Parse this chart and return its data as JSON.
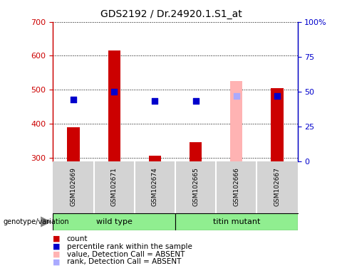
{
  "title": "GDS2192 / Dr.24920.1.S1_at",
  "samples": [
    "GSM102669",
    "GSM102671",
    "GSM102674",
    "GSM102665",
    "GSM102666",
    "GSM102667"
  ],
  "count_values": [
    390,
    615,
    305,
    345,
    525,
    505
  ],
  "percentile_values": [
    44,
    50,
    43,
    43,
    47,
    47
  ],
  "absent_flags": [
    false,
    false,
    false,
    false,
    true,
    false
  ],
  "bar_color_present": "#cc0000",
  "bar_color_absent": "#ffb3b3",
  "dot_color_present": "#0000cc",
  "dot_color_absent": "#aaaaff",
  "ylim_left": [
    290,
    700
  ],
  "ylim_right": [
    0,
    100
  ],
  "yticks_left": [
    300,
    400,
    500,
    600,
    700
  ],
  "yticks_right": [
    0,
    25,
    50,
    75,
    100
  ],
  "yticklabels_right": [
    "0",
    "25",
    "50",
    "75",
    "100%"
  ],
  "legend": [
    {
      "label": "count",
      "color": "#cc0000"
    },
    {
      "label": "percentile rank within the sample",
      "color": "#0000cc"
    },
    {
      "label": "value, Detection Call = ABSENT",
      "color": "#ffb3b3"
    },
    {
      "label": "rank, Detection Call = ABSENT",
      "color": "#aaaaff"
    }
  ],
  "bar_width": 0.3,
  "dot_size": 40,
  "left_axis_color": "#cc0000",
  "right_axis_color": "#0000cc",
  "sample_box_color": "#d3d3d3",
  "group_wt_color": "#90ee90",
  "group_tm_color": "#90ee90"
}
